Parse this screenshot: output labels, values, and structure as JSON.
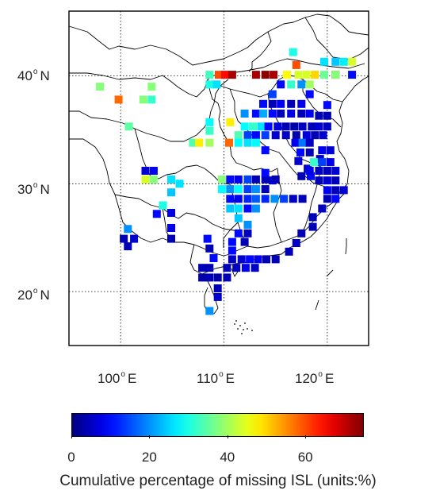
{
  "lat_labels": [
    {
      "value": "40",
      "hemi": "N"
    },
    {
      "value": "30",
      "hemi": "N"
    },
    {
      "value": "20",
      "hemi": "N"
    }
  ],
  "lon_labels": [
    {
      "value": "100",
      "hemi": "E"
    },
    {
      "value": "110",
      "hemi": "E"
    },
    {
      "value": "120",
      "hemi": "E"
    }
  ],
  "map_extent": {
    "lon_min": 95,
    "lon_max": 124,
    "lat_min": 15,
    "lat_max": 46
  },
  "colorbar": {
    "min": 0,
    "max": 75,
    "ticks": [
      "0",
      "20",
      "40",
      "60"
    ],
    "tick_values": [
      0,
      20,
      40,
      60
    ],
    "colormap": "jet",
    "title": "Cumulative percentage of missing ISL (units:%)"
  },
  "stations": [
    [
      98.0,
      39.0,
      38
    ],
    [
      99.8,
      37.8,
      58
    ],
    [
      103.0,
      39.0,
      38
    ],
    [
      102.2,
      37.8,
      38
    ],
    [
      103.0,
      37.8,
      32
    ],
    [
      100.8,
      35.3,
      35
    ],
    [
      108.6,
      40.1,
      33
    ],
    [
      109.5,
      40.1,
      60
    ],
    [
      110.1,
      40.1,
      65
    ],
    [
      110.8,
      40.1,
      72
    ],
    [
      113.1,
      40.1,
      72
    ],
    [
      114.0,
      40.1,
      74
    ],
    [
      114.8,
      40.1,
      72
    ],
    [
      108.6,
      39.2,
      30
    ],
    [
      109.3,
      39.2,
      26
    ],
    [
      116.5,
      39.2,
      32
    ],
    [
      117.5,
      39.2,
      20
    ],
    [
      118.3,
      39.2,
      40
    ],
    [
      116.7,
      42.2,
      30
    ],
    [
      117.0,
      41.0,
      60
    ],
    [
      116.1,
      40.1,
      47
    ],
    [
      117.2,
      40.1,
      44
    ],
    [
      118.0,
      40.1,
      44
    ],
    [
      118.8,
      40.1,
      50
    ],
    [
      119.7,
      40.1,
      36
    ],
    [
      120.8,
      40.1,
      65
    ],
    [
      122.4,
      40.1,
      10
    ],
    [
      119.7,
      41.3,
      26
    ],
    [
      120.8,
      41.3,
      24
    ],
    [
      121.6,
      41.3,
      27
    ],
    [
      122.4,
      41.3,
      44
    ],
    [
      120.8,
      40.1,
      38
    ],
    [
      115.5,
      39.2,
      10
    ],
    [
      114.7,
      38.3,
      14
    ],
    [
      113.8,
      37.4,
      10
    ],
    [
      114.7,
      37.4,
      4
    ],
    [
      115.5,
      37.4,
      9
    ],
    [
      116.5,
      37.4,
      4
    ],
    [
      117.5,
      37.4,
      8
    ],
    [
      118.3,
      38.3,
      10
    ],
    [
      113.1,
      36.5,
      10
    ],
    [
      113.8,
      36.5,
      22
    ],
    [
      114.7,
      36.5,
      10
    ],
    [
      115.5,
      36.5,
      4
    ],
    [
      116.5,
      36.5,
      7
    ],
    [
      117.5,
      36.5,
      4
    ],
    [
      118.3,
      36.5,
      8
    ],
    [
      120.0,
      37.3,
      10
    ],
    [
      112.0,
      36.5,
      20
    ],
    [
      112.0,
      35.3,
      28
    ],
    [
      112.8,
      35.3,
      32
    ],
    [
      113.6,
      35.3,
      26
    ],
    [
      114.3,
      35.3,
      10
    ],
    [
      115.2,
      35.3,
      7
    ],
    [
      116.0,
      35.3,
      4
    ],
    [
      116.8,
      35.3,
      3
    ],
    [
      117.6,
      35.3,
      5
    ],
    [
      118.5,
      35.3,
      4
    ],
    [
      119.2,
      35.3,
      6
    ],
    [
      120.0,
      35.3,
      5
    ],
    [
      120.0,
      36.3,
      4
    ],
    [
      119.2,
      36.3,
      4
    ],
    [
      108.6,
      35.7,
      28
    ],
    [
      108.6,
      34.9,
      32
    ],
    [
      110.6,
      35.7,
      48
    ],
    [
      111.4,
      34.5,
      34
    ],
    [
      112.3,
      34.5,
      14
    ],
    [
      113.1,
      34.5,
      10
    ],
    [
      114.0,
      34.5,
      14
    ],
    [
      115.0,
      34.5,
      6
    ],
    [
      116.0,
      34.5,
      5
    ],
    [
      117.0,
      34.5,
      3
    ],
    [
      118.0,
      34.5,
      7
    ],
    [
      118.8,
      34.5,
      4
    ],
    [
      119.6,
      34.5,
      6
    ],
    [
      107.0,
      33.8,
      34
    ],
    [
      107.6,
      33.8,
      48
    ],
    [
      108.6,
      33.8,
      40
    ],
    [
      110.5,
      33.8,
      58
    ],
    [
      111.4,
      33.8,
      28
    ],
    [
      112.3,
      33.8,
      26
    ],
    [
      113.1,
      33.8,
      28
    ],
    [
      114.0,
      33.1,
      10
    ],
    [
      116.9,
      33.8,
      8
    ],
    [
      117.6,
      33.8,
      18
    ],
    [
      117.4,
      32.9,
      10
    ],
    [
      118.3,
      32.9,
      4
    ],
    [
      118.3,
      33.8,
      5
    ],
    [
      119.3,
      32.3,
      5
    ],
    [
      117.2,
      32.1,
      6
    ],
    [
      118.1,
      31.4,
      6
    ],
    [
      117.5,
      30.7,
      4
    ],
    [
      118.4,
      30.7,
      10
    ],
    [
      118.3,
      31.2,
      8
    ],
    [
      119.2,
      31.2,
      5
    ],
    [
      120.0,
      31.2,
      4
    ],
    [
      120.8,
      31.2,
      6
    ],
    [
      118.7,
      32.0,
      32
    ],
    [
      119.5,
      32.0,
      14
    ],
    [
      120.3,
      32.0,
      8
    ],
    [
      119.5,
      33.1,
      8
    ],
    [
      120.3,
      33.1,
      6
    ],
    [
      119.2,
      30.3,
      4
    ],
    [
      120.0,
      30.3,
      6
    ],
    [
      120.8,
      30.3,
      4
    ],
    [
      120.0,
      29.4,
      8
    ],
    [
      120.8,
      29.4,
      4
    ],
    [
      121.6,
      29.4,
      6
    ],
    [
      120.0,
      28.6,
      4
    ],
    [
      120.8,
      28.6,
      10
    ],
    [
      119.5,
      27.7,
      5
    ],
    [
      118.6,
      26.9,
      4
    ],
    [
      118.6,
      26.0,
      4
    ],
    [
      117.5,
      25.4,
      4
    ],
    [
      117.0,
      24.5,
      5
    ],
    [
      116.3,
      23.7,
      4
    ],
    [
      115.0,
      23.0,
      4
    ],
    [
      114.1,
      23.0,
      4
    ],
    [
      113.3,
      23.0,
      8
    ],
    [
      112.5,
      23.0,
      10
    ],
    [
      111.7,
      23.0,
      6
    ],
    [
      110.8,
      23.0,
      5
    ],
    [
      110.3,
      22.2,
      4
    ],
    [
      111.2,
      22.2,
      5
    ],
    [
      112.1,
      22.2,
      8
    ],
    [
      113.0,
      22.2,
      5
    ],
    [
      109.4,
      21.3,
      3
    ],
    [
      110.3,
      21.3,
      4
    ],
    [
      108.6,
      22.2,
      4
    ],
    [
      107.9,
      22.2,
      4
    ],
    [
      108.6,
      21.3,
      4
    ],
    [
      107.9,
      21.3,
      3
    ],
    [
      109.4,
      20.3,
      4
    ],
    [
      109.4,
      19.5,
      6
    ],
    [
      108.6,
      18.2,
      20
    ],
    [
      109.0,
      23.1,
      10
    ],
    [
      108.6,
      24.0,
      4
    ],
    [
      108.4,
      24.9,
      10
    ],
    [
      110.8,
      23.8,
      10
    ],
    [
      110.8,
      24.6,
      10
    ],
    [
      112.0,
      24.6,
      4
    ],
    [
      111.4,
      25.4,
      10
    ],
    [
      112.3,
      25.4,
      5
    ],
    [
      112.3,
      26.2,
      20
    ],
    [
      111.4,
      26.8,
      24
    ],
    [
      110.6,
      27.7,
      24
    ],
    [
      111.4,
      27.7,
      26
    ],
    [
      112.3,
      27.7,
      10
    ],
    [
      113.1,
      27.7,
      20
    ],
    [
      110.6,
      28.6,
      10
    ],
    [
      111.4,
      28.6,
      8
    ],
    [
      112.3,
      28.6,
      12
    ],
    [
      113.1,
      28.6,
      16
    ],
    [
      114.0,
      28.6,
      12
    ],
    [
      114.9,
      28.6,
      20
    ],
    [
      115.8,
      28.6,
      14
    ],
    [
      116.7,
      28.6,
      5
    ],
    [
      117.6,
      28.6,
      4
    ],
    [
      109.8,
      29.5,
      28
    ],
    [
      110.6,
      29.5,
      20
    ],
    [
      111.4,
      29.5,
      28
    ],
    [
      112.3,
      29.5,
      14
    ],
    [
      113.1,
      29.5,
      20
    ],
    [
      114.0,
      29.5,
      4
    ],
    [
      114.7,
      30.3,
      6
    ],
    [
      109.8,
      30.4,
      38
    ],
    [
      110.6,
      30.4,
      10
    ],
    [
      111.4,
      30.4,
      8
    ],
    [
      112.3,
      30.4,
      14
    ],
    [
      113.1,
      30.4,
      4
    ],
    [
      114.0,
      30.4,
      4
    ],
    [
      115.0,
      30.4,
      4
    ],
    [
      102.4,
      31.2,
      6
    ],
    [
      103.2,
      31.2,
      8
    ],
    [
      102.4,
      30.4,
      44
    ],
    [
      103.2,
      30.4,
      38
    ],
    [
      104.9,
      30.4,
      26
    ],
    [
      105.7,
      30.0,
      26
    ],
    [
      104.9,
      29.2,
      24
    ],
    [
      104.1,
      28.0,
      30
    ],
    [
      103.5,
      27.2,
      10
    ],
    [
      104.9,
      27.3,
      8
    ],
    [
      104.9,
      25.9,
      8
    ],
    [
      104.9,
      24.9,
      4
    ],
    [
      100.7,
      25.8,
      20
    ],
    [
      101.3,
      24.9,
      6
    ],
    [
      100.3,
      24.9,
      4
    ],
    [
      100.7,
      24.2,
      4
    ],
    [
      114.0,
      31.0,
      10
    ]
  ]
}
